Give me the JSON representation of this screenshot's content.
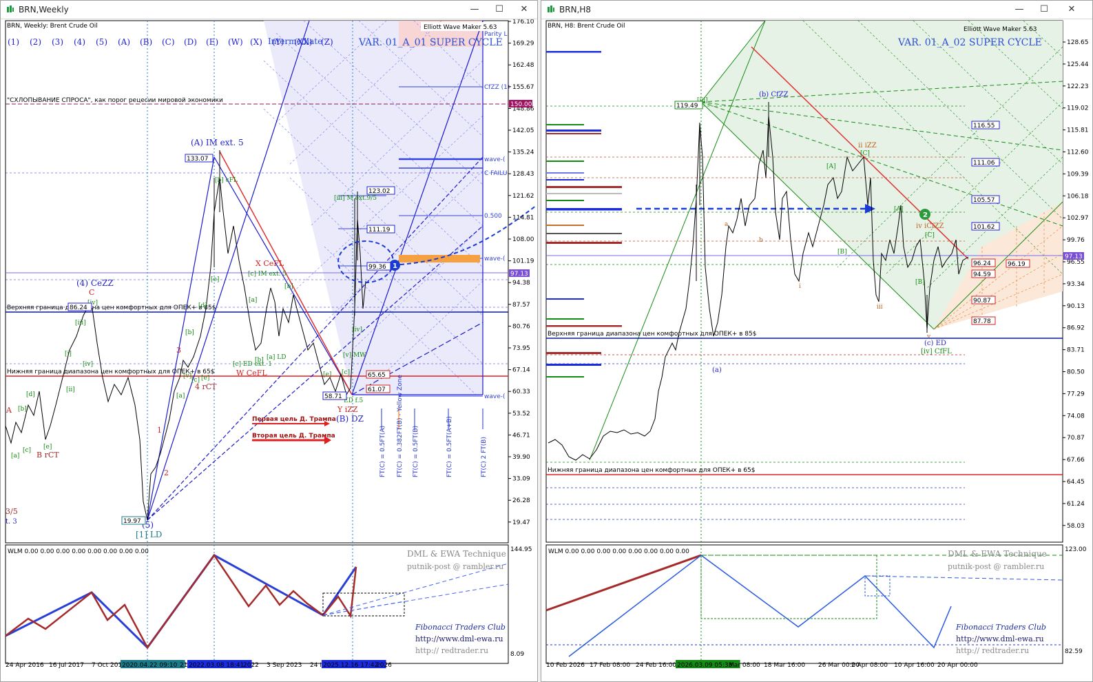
{
  "left_window": {
    "title": "BRN,Weekly",
    "header": "BRN, Weekly:  Brent Crude Oil",
    "indicator": "Elliott Wave Maker 5.63",
    "variant": "VAR. 01_A_01 SUPER CYCLE",
    "degree": "Intermediate",
    "wave_buttons": [
      "(1)",
      "(2)",
      "(3)",
      "(4)",
      "(5)",
      "(A)",
      "(B)",
      "(C)",
      "(D)",
      "(E)",
      "(W)",
      "(X)",
      "(Y)",
      "(XX)",
      "(Z)"
    ],
    "demand_collapse": "\"СХЛОПЫВАНИЕ СПРОСА\", как порог рецесии мировой экономики",
    "upper_opec": "Верхняя граница диапазона цен комфортных для ОПЕК+ в 85$",
    "lower_opec": "Нижняя граница диапазона цен комфортных для ОПЕК+ в 65$",
    "trump_target_1": "Первая цель Д. Трампа",
    "trump_target_2": "Вторая цель Д. Трампа",
    "price_axis": [
      "176.10",
      "169.29",
      "162.48",
      "155.67",
      "148.86",
      "142.05",
      "135.24",
      "128.43",
      "121.62",
      "114.81",
      "108.00",
      "101.19",
      "94.38",
      "87.57",
      "80.76",
      "73.95",
      "67.14",
      "60.33",
      "53.52",
      "46.71",
      "39.90",
      "33.09",
      "26.28",
      "19.47"
    ],
    "price_tags": {
      "p150": "150.00",
      "p9713": "97.13",
      "p13307": "133.07",
      "p12302": "123.02",
      "p11119": "111.19",
      "p9936": "99.36",
      "p6565": "65.65",
      "p6107": "61.07",
      "p5871": "58.71",
      "p1997": "19.97",
      "p8624": "86.24"
    },
    "right_side_labels": [
      "Parity L",
      "CfZZ (1)",
      "wave-(",
      "C FAILU",
      "0.500",
      "wave-(",
      "wave-("
    ],
    "fib_labels": [
      "FT(C) = 0.5FT(A)",
      "FT(C) = 0.382FT(B) - Yellow Zone",
      "FT(C) = 0.5FT(B)",
      "FT(C) = 0.5FT(A+B)",
      "FT(C) 2 FT(B)"
    ],
    "wave_labels": {
      "a_imext": "(A) IM ext. 5",
      "cezz": "(4) CeZZ",
      "c": "C",
      "b_rct": "B rCT",
      "a": "A",
      "three": "3",
      "four_rct": "4 rCT",
      "one": "1",
      "two": "2",
      "five": "(5)",
      "one_ld": "[1] LD",
      "x_cefl": "X CeFL",
      "c_imext": "[c] IM ext. 5",
      "w_cefl": "W CeFL",
      "c_ed": "[c] ED ext. 1",
      "a_ld": "[a] LD",
      "y_izz": "Y iZZ",
      "b_dz": "(B) DZ",
      "ed_f5": "ED f.5",
      "iii_mext": "[iii] M ext.9/5",
      "b_cfl": "[b] cFL",
      "v_mw": "[v] MW",
      "nine_five": "3/5",
      "xt3": "t. 3",
      "iv": "[iv]",
      "iii": "[iii]",
      "i": "[i]",
      "ii": "[ii]",
      "iv2": "[iv]",
      "v": "[v]",
      "c2": "[c]",
      "b2": "[b]",
      "d": "[d]",
      "e": "[e]",
      "a2": "[a]",
      "e2": "[e]",
      "b3": "[b]",
      "c3": "[c]",
      "d2": "[d]",
      "e3": "[e]",
      "a3": "[a]",
      "b4": "[b]",
      "e4": "[e]",
      "ivs": "[iv]",
      "aa": "[a]",
      "cc": "[c]",
      "bb": "[b]"
    },
    "time_axis": [
      "24 Apr 2016",
      "16 Jul 2017",
      "7 Oct 201",
      "2020.04.22 09:10",
      "21",
      "2022.03.08 18:41",
      "2022",
      "3 Sep 2023",
      "24 I",
      "2025.12.16 17:42",
      "2026"
    ],
    "wlm": "WLM 0.00 0.00 0.00 0.00 0.00 0.00 0.00 0.00",
    "wlm_axis": [
      "144.95",
      "8.09"
    ],
    "brand1": "DML & EWA Technique",
    "brand2": "putnik-post @ rambler.ru",
    "brand3": "Fibonacci   Traders   Club",
    "brand4": "http://www.dml-ewa.ru",
    "brand5": "http://  redtrader.ru"
  },
  "right_window": {
    "title": "BRN,H8",
    "header": "BRN, H8:  Brent Crude Oil",
    "indicator": "Elliott Wave Maker 5.63",
    "variant": "VAR. 01_A_02 SUPER CYCLE",
    "upper_opec": "Верхняя граница диапазона цен комфортных для ОПЕК+ в 85$",
    "lower_opec": "Нижняя граница диапазона цен комфортных для ОПЕК+ в 65$",
    "price_axis": [
      "128.65",
      "125.44",
      "122.23",
      "119.02",
      "115.81",
      "112.60",
      "109.39",
      "106.18",
      "102.97",
      "99.76",
      "96.55",
      "93.34",
      "90.13",
      "86.92",
      "83.71",
      "80.50",
      "77.29",
      "74.08",
      "70.87",
      "67.66",
      "64.45",
      "61.24",
      "58.03"
    ],
    "price_tags": {
      "p11949": "119.49",
      "p11655": "116.55",
      "p11106": "111.06",
      "p10557": "105.57",
      "p10162": "101.62",
      "p9713": "97.13",
      "p9624": "96.24",
      "p9619": "96.19",
      "p9459": "94.59",
      "p9087": "90.87",
      "p8778": "87.78"
    },
    "wave_labels": {
      "iii": "[iii]",
      "b_cfzz": "(b) CfZZ",
      "ii_izz": "ii iZZ",
      "iv_icfzz": "iv iCfZZ",
      "c_ed": "(c) ED",
      "iv_cffl": "[iv] CfFL",
      "a_paren": "(a)",
      "A": "[A]",
      "B": "[B]",
      "C": "[C]",
      "A2": "[A]",
      "B2": "[B]",
      "C2": "[C]",
      "a": "a",
      "b": "b",
      "i": "i",
      "iii2": "iii",
      "v": "v",
      "circle2": "2"
    },
    "time_axis": [
      "10 Feb 2026",
      "17 Feb 08:00",
      "24 Feb 16:00",
      "2026.03.09 05:33",
      "Mar 08:00",
      "18 Mar 16:00",
      "26 Mar 00:00",
      "2 Apr 08:00",
      "10 Apr 16:00",
      "20 Apr 00:00"
    ],
    "wlm": "WLM 0.00 0.00 0.00 0.00 0.00 0.00 0.00 0.00",
    "wlm_axis": [
      "123.00",
      "82.59"
    ],
    "brand1": "DML & EWA Technique",
    "brand2": "putnik-post @ rambler.ru",
    "brand3": "Fibonacci   Traders   Club",
    "brand4": "http://www.dml-ewa.ru",
    "brand5": "http://  redtrader.ru"
  },
  "circle1": "1",
  "colors": {
    "blue": "#1a1aff",
    "red": "#e02020",
    "green": "#138a13",
    "darkred": "#a52a2a",
    "orange": "#f5a142",
    "purple": "#9b59b6"
  }
}
